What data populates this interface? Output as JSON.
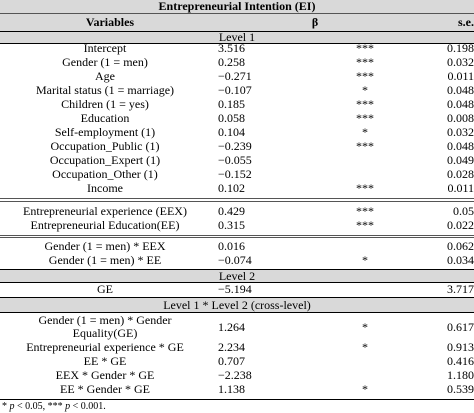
{
  "title": "Entrepreneurial Intention (EI)",
  "headers": {
    "variables": "Variables",
    "beta": "β",
    "se": "s.e."
  },
  "bands": {
    "level1": "Level 1",
    "level2": "Level 2",
    "cross": "Level 1 * Level 2 (cross-level)"
  },
  "rows": [
    {
      "var": "Intercept",
      "beta": "3.516",
      "sig": "***",
      "se": "0.198"
    },
    {
      "var": "Gender (1 = men)",
      "beta": "0.258",
      "sig": "***",
      "se": "0.032"
    },
    {
      "var": "Age",
      "beta": "−0.271",
      "sig": "***",
      "se": "0.011"
    },
    {
      "var": "Marital status (1 = marriage)",
      "beta": "−0.107",
      "sig": "*",
      "se": "0.048"
    },
    {
      "var": "Children (1 = yes)",
      "beta": "0.185",
      "sig": "***",
      "se": "0.048"
    },
    {
      "var": "Education",
      "beta": "0.058",
      "sig": "***",
      "se": "0.008"
    },
    {
      "var": "Self-employment (1)",
      "beta": "0.104",
      "sig": "*",
      "se": "0.032"
    },
    {
      "var": "Occupation_Public (1)",
      "beta": "−0.239",
      "sig": "***",
      "se": "0.048"
    },
    {
      "var": "Occupation_Expert (1)",
      "beta": "−0.055",
      "sig": "",
      "se": "0.049"
    },
    {
      "var": "Occupation_Other (1)",
      "beta": "−0.152",
      "sig": "",
      "se": "0.028"
    },
    {
      "var": "Income",
      "beta": "0.102",
      "sig": "***",
      "se": "0.011"
    },
    {
      "var": "Entrepreneurial experience (EEX)",
      "beta": "0.429",
      "sig": "***",
      "se": "0.05"
    },
    {
      "var": "Entrepreneurial Education(EE)",
      "beta": "0.315",
      "sig": "***",
      "se": "0.022"
    },
    {
      "var": "Gender (1 = men) * EEX",
      "beta": "0.016",
      "sig": "",
      "se": "0.062"
    },
    {
      "var": "Gender (1 = men) * EE",
      "beta": "−0.074",
      "sig": "*",
      "se": "0.034"
    },
    {
      "var": "GE",
      "beta": "−5.194",
      "sig": "",
      "se": "3.717"
    },
    {
      "var1": "Gender (1 = men) * Gender",
      "var2": "Equality(GE)",
      "beta": "1.264",
      "sig": "*",
      "se": "0.617"
    },
    {
      "var": "Entrepreneurial experience * GE",
      "beta": "2.234",
      "sig": "*",
      "se": "0.913"
    },
    {
      "var": "EE * GE",
      "beta": "0.707",
      "sig": "",
      "se": "0.416"
    },
    {
      "var": "EEX * Gender * GE",
      "beta": "−2.238",
      "sig": "",
      "se": "1.180"
    },
    {
      "var": "EE * Gender * GE",
      "beta": "1.138",
      "sig": "*",
      "se": "0.539"
    }
  ],
  "note": {
    "p1": "p",
    "t1": " < 0.05, *** ",
    "p2": "p",
    "t2": " < 0.001.",
    "lead": "*"
  }
}
